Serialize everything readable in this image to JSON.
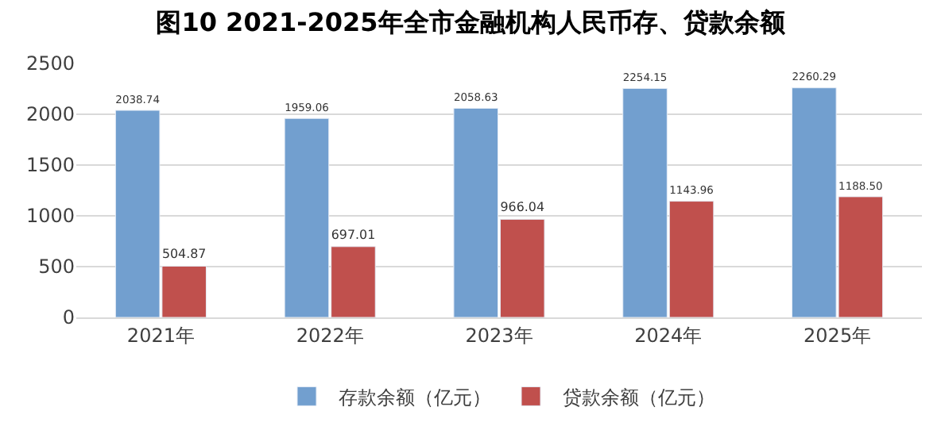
{
  "chart_data": {
    "type": "bar",
    "title": "图10 2021-2025年全市金融机构人民币存、贷款余额",
    "categories": [
      "2021年",
      "2022年",
      "2023年",
      "2024年",
      "2025年"
    ],
    "series": [
      {
        "name": "存款余额（亿元）",
        "color": "#729fcf",
        "values": [
          2038.74,
          1959.06,
          2058.63,
          2254.15,
          2260.29
        ],
        "value_labels": [
          "2038.74",
          "1959.06",
          "2058.63",
          "2254.15",
          "2260.29"
        ]
      },
      {
        "name": "贷款余额（亿元）",
        "color": "#c0504d",
        "values": [
          504.87,
          697.01,
          966.04,
          1143.96,
          1188.5
        ],
        "value_labels": [
          "504.87",
          "697.01",
          "966.04",
          "1143.96",
          "1188.50"
        ]
      }
    ],
    "ylim": [
      0,
      2500
    ],
    "yticks": [
      0,
      500,
      1000,
      1500,
      2000,
      2500
    ],
    "grid": "y",
    "legend": "bottom"
  }
}
